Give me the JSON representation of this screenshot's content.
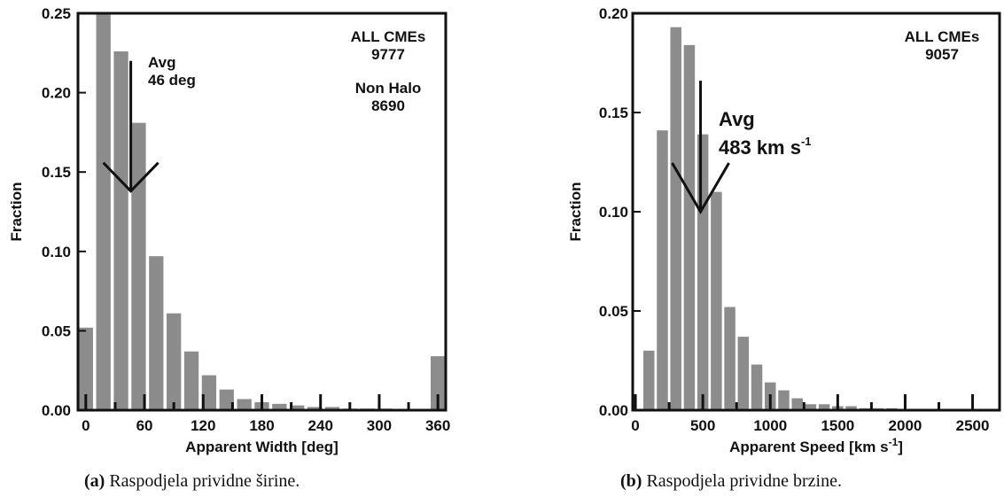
{
  "figure": {
    "captions": [
      {
        "label": "(a)",
        "text": "Raspodjela prividne širine."
      },
      {
        "label": "(b)",
        "text": "Raspodjela prividne brzine."
      }
    ]
  },
  "chart_data": [
    {
      "type": "bar",
      "xlabel": "Apparent Width [deg]",
      "ylabel": "Fraction",
      "xlim": [
        -8,
        368
      ],
      "ylim": [
        0,
        0.25
      ],
      "bin_width": 18,
      "xticks": [
        "0",
        "60",
        "120",
        "180",
        "240",
        "300",
        "360"
      ],
      "xtick_values": [
        0,
        60,
        120,
        180,
        240,
        300,
        360
      ],
      "yticks": [
        "0.00",
        "0.05",
        "0.10",
        "0.15",
        "0.20",
        "0.25"
      ],
      "ytick_values": [
        0,
        0.05,
        0.1,
        0.15,
        0.2,
        0.25
      ],
      "bins": [
        0,
        18,
        36,
        54,
        72,
        90,
        108,
        126,
        144,
        162,
        180,
        198,
        216,
        234,
        252,
        270,
        288,
        306,
        324,
        342,
        360
      ],
      "values": [
        0.052,
        0.25,
        0.226,
        0.181,
        0.097,
        0.061,
        0.037,
        0.022,
        0.013,
        0.007,
        0.005,
        0.004,
        0.003,
        0.002,
        0.002,
        0.001,
        0.001,
        0.001,
        0.0,
        0.0,
        0.034
      ],
      "annotations": [
        {
          "lines": [
            "ALL CMEs",
            "9777"
          ]
        },
        {
          "lines": [
            "Non Halo",
            "8690"
          ]
        },
        {
          "lines": [
            "Avg",
            "46 deg"
          ],
          "arrow_x": 46,
          "arrow_y_top": 0.22,
          "arrow_y_tip": 0.138
        }
      ],
      "grid": false
    },
    {
      "type": "bar",
      "xlabel": "Apparent Speed [km s",
      "xlabel_sup": "-1",
      "xlabel_end": "]",
      "ylabel": "Fraction",
      "xlim": [
        -20,
        2700
      ],
      "ylim": [
        0,
        0.2
      ],
      "bin_width": 100,
      "xticks": [
        "0",
        "500",
        "1000",
        "1500",
        "2000",
        "2500"
      ],
      "xtick_values": [
        0,
        500,
        1000,
        1500,
        2000,
        2500
      ],
      "yticks": [
        "0.00",
        "0.05",
        "0.10",
        "0.15",
        "0.20"
      ],
      "ytick_values": [
        0,
        0.05,
        0.1,
        0.15,
        0.2
      ],
      "bins": [
        100,
        200,
        300,
        400,
        500,
        600,
        700,
        800,
        900,
        1000,
        1100,
        1200,
        1300,
        1400,
        1500,
        1600,
        1700,
        1800,
        1900
      ],
      "values": [
        0.03,
        0.141,
        0.193,
        0.184,
        0.139,
        0.11,
        0.052,
        0.037,
        0.023,
        0.014,
        0.01,
        0.006,
        0.003,
        0.003,
        0.002,
        0.002,
        0.001,
        0.001,
        0.001
      ],
      "annotations": [
        {
          "lines": [
            "ALL CMEs",
            "9057"
          ]
        },
        {
          "lines": [
            "Avg",
            "483 km s"
          ],
          "sup": "-1",
          "arrow_x": 483,
          "arrow_y_top": 0.166,
          "arrow_y_tip": 0.1
        }
      ],
      "grid": false
    }
  ]
}
